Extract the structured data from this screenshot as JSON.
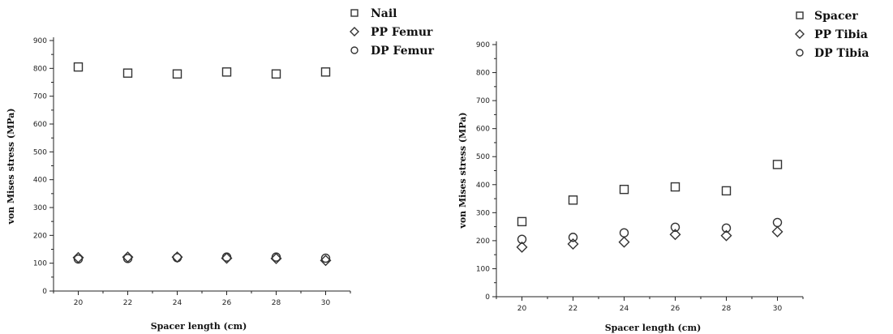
{
  "chart_data": [
    {
      "type": "scatter",
      "xlabel": "Spacer length (cm)",
      "ylabel": "von Mises stress (MPa)",
      "x": [
        20,
        22,
        24,
        26,
        28,
        30
      ],
      "xlim": [
        19,
        31
      ],
      "ylim": [
        0,
        900
      ],
      "xticks": [
        20,
        22,
        24,
        26,
        28,
        30
      ],
      "yticks": [
        0,
        100,
        200,
        300,
        400,
        500,
        600,
        700,
        800,
        900
      ],
      "grid": false,
      "legend_position": "top-right, outside plot",
      "series": [
        {
          "name": "Nail",
          "marker": "square",
          "values": [
            805,
            783,
            780,
            787,
            780,
            787
          ]
        },
        {
          "name": "PP Femur",
          "marker": "diamond",
          "values": [
            120,
            122,
            122,
            118,
            117,
            110
          ]
        },
        {
          "name": "DP Femur",
          "marker": "circle",
          "values": [
            115,
            117,
            120,
            122,
            122,
            118
          ]
        }
      ]
    },
    {
      "type": "scatter",
      "xlabel": "Spacer length (cm)",
      "ylabel": "von Mises stress (MPa)",
      "x": [
        20,
        22,
        24,
        26,
        28,
        30
      ],
      "xlim": [
        19,
        31
      ],
      "ylim": [
        0,
        900
      ],
      "xticks": [
        20,
        22,
        24,
        26,
        28,
        30
      ],
      "yticks": [
        0,
        100,
        200,
        300,
        400,
        500,
        600,
        700,
        800,
        900
      ],
      "grid": false,
      "legend_position": "top-right, outside plot",
      "series": [
        {
          "name": "Spacer",
          "marker": "square",
          "values": [
            268,
            345,
            383,
            392,
            378,
            472
          ]
        },
        {
          "name": "PP Tibia",
          "marker": "diamond",
          "values": [
            177,
            188,
            195,
            222,
            218,
            232
          ]
        },
        {
          "name": "DP Tibia",
          "marker": "circle",
          "values": [
            205,
            212,
            228,
            248,
            245,
            265
          ]
        }
      ]
    }
  ]
}
